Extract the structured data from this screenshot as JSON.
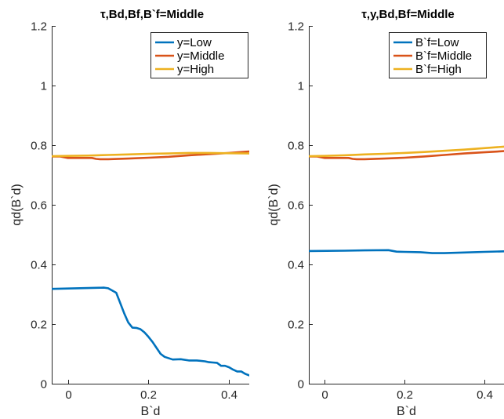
{
  "chart_data": [
    {
      "type": "line",
      "title": "τ,Bd,Bf,B`f=Middle",
      "xlabel": "B`d",
      "ylabel": "qd(B`d)",
      "xlim": [
        -0.04,
        0.45
      ],
      "ylim": [
        0,
        1.2
      ],
      "xticks": [
        0,
        0.2,
        0.4
      ],
      "xtick_labels": [
        "0",
        "0.2",
        "0.4"
      ],
      "yticks": [
        0,
        0.2,
        0.4,
        0.6,
        0.8,
        1,
        1.2
      ],
      "ytick_labels": [
        "0",
        "0.2",
        "0.4",
        "0.6",
        "0.8",
        "1",
        "1.2"
      ],
      "grid": false,
      "legend_position": "top-right",
      "series": [
        {
          "name": "y=Low",
          "color": "#0072BD",
          "x": [
            -0.04,
            0.09,
            0.1,
            0.12,
            0.14,
            0.15,
            0.16,
            0.17,
            0.18,
            0.19,
            0.2,
            0.21,
            0.22,
            0.23,
            0.24,
            0.26,
            0.28,
            0.3,
            0.32,
            0.34,
            0.35,
            0.36,
            0.37,
            0.38,
            0.39,
            0.4,
            0.41,
            0.42,
            0.43,
            0.44,
            0.45
          ],
          "y": [
            0.318,
            0.322,
            0.32,
            0.305,
            0.235,
            0.205,
            0.188,
            0.187,
            0.183,
            0.172,
            0.157,
            0.14,
            0.12,
            0.1,
            0.09,
            0.081,
            0.082,
            0.078,
            0.078,
            0.075,
            0.072,
            0.071,
            0.07,
            0.06,
            0.06,
            0.055,
            0.047,
            0.041,
            0.041,
            0.033,
            0.028
          ]
        },
        {
          "name": "y=Middle",
          "color": "#D95319",
          "x": [
            -0.04,
            -0.02,
            0.0,
            0.02,
            0.04,
            0.06,
            0.07,
            0.08,
            0.1,
            0.15,
            0.2,
            0.25,
            0.3,
            0.35,
            0.4,
            0.45
          ],
          "y": [
            0.762,
            0.762,
            0.757,
            0.757,
            0.757,
            0.757,
            0.754,
            0.753,
            0.753,
            0.755,
            0.758,
            0.761,
            0.766,
            0.77,
            0.774,
            0.779
          ]
        },
        {
          "name": "y=High",
          "color": "#EDB120",
          "x": [
            -0.04,
            0.0,
            0.05,
            0.1,
            0.15,
            0.2,
            0.25,
            0.3,
            0.35,
            0.4,
            0.45
          ],
          "y": [
            0.763,
            0.764,
            0.765,
            0.767,
            0.769,
            0.771,
            0.772,
            0.774,
            0.774,
            0.773,
            0.772
          ]
        }
      ]
    },
    {
      "type": "line",
      "title": "τ,y,Bd,Bf=Middle",
      "xlabel": "B`d",
      "ylabel": "qd(B`d)",
      "xlim": [
        -0.04,
        0.45
      ],
      "ylim": [
        0,
        1.2
      ],
      "xticks": [
        0,
        0.2,
        0.4
      ],
      "xtick_labels": [
        "0",
        "0.2",
        "0.4"
      ],
      "yticks": [
        0,
        0.2,
        0.4,
        0.6,
        0.8,
        1,
        1.2
      ],
      "ytick_labels": [
        "0",
        "0.2",
        "0.4",
        "0.6",
        "0.8",
        "1",
        "1.2"
      ],
      "grid": false,
      "legend_position": "top-right",
      "series": [
        {
          "name": "B`f=Low",
          "color": "#0072BD",
          "x": [
            -0.04,
            0.05,
            0.1,
            0.16,
            0.18,
            0.2,
            0.24,
            0.27,
            0.3,
            0.35,
            0.4,
            0.45
          ],
          "y": [
            0.445,
            0.446,
            0.447,
            0.448,
            0.443,
            0.442,
            0.441,
            0.438,
            0.438,
            0.44,
            0.442,
            0.444
          ]
        },
        {
          "name": "B`f=Middle",
          "color": "#D95319",
          "x": [
            -0.04,
            -0.02,
            0.0,
            0.02,
            0.04,
            0.06,
            0.07,
            0.08,
            0.1,
            0.15,
            0.2,
            0.25,
            0.3,
            0.35,
            0.4,
            0.45
          ],
          "y": [
            0.762,
            0.762,
            0.757,
            0.757,
            0.757,
            0.757,
            0.754,
            0.753,
            0.753,
            0.755,
            0.758,
            0.762,
            0.767,
            0.772,
            0.776,
            0.78
          ]
        },
        {
          "name": "B`f=High",
          "color": "#EDB120",
          "x": [
            -0.04,
            0.0,
            0.05,
            0.1,
            0.15,
            0.2,
            0.25,
            0.3,
            0.35,
            0.4,
            0.45
          ],
          "y": [
            0.763,
            0.764,
            0.766,
            0.769,
            0.771,
            0.774,
            0.777,
            0.781,
            0.785,
            0.79,
            0.795
          ]
        }
      ]
    }
  ]
}
